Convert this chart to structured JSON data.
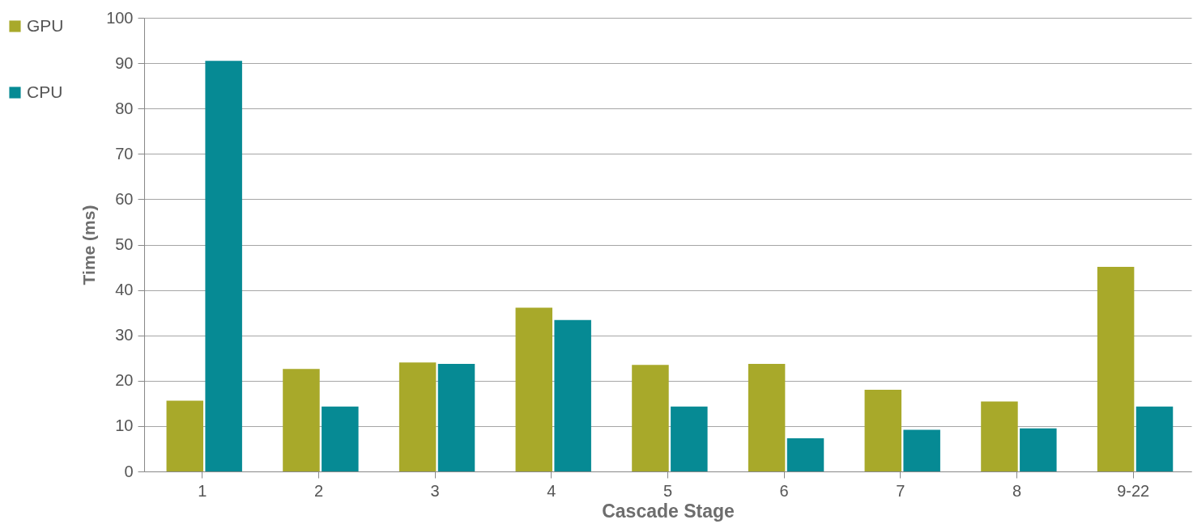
{
  "chart_data": {
    "type": "bar",
    "xlabel": "Cascade Stage",
    "ylabel": "Time (ms)",
    "categories": [
      "1",
      "2",
      "3",
      "4",
      "5",
      "6",
      "7",
      "8",
      "9-22"
    ],
    "series": [
      {
        "name": "GPU",
        "color": "#a8a92a",
        "values": [
          15.6,
          22.6,
          24.0,
          36.1,
          23.5,
          23.7,
          18.0,
          15.4,
          45.1
        ]
      },
      {
        "name": "CPU",
        "color": "#068a94",
        "values": [
          90.5,
          14.3,
          23.7,
          33.4,
          14.3,
          7.3,
          9.2,
          9.5,
          14.3
        ]
      }
    ],
    "ylim": [
      0,
      100
    ],
    "yticks": [
      0,
      10,
      20,
      30,
      40,
      50,
      60,
      70,
      80,
      90,
      100
    ],
    "grid": "y",
    "legend": "left"
  }
}
